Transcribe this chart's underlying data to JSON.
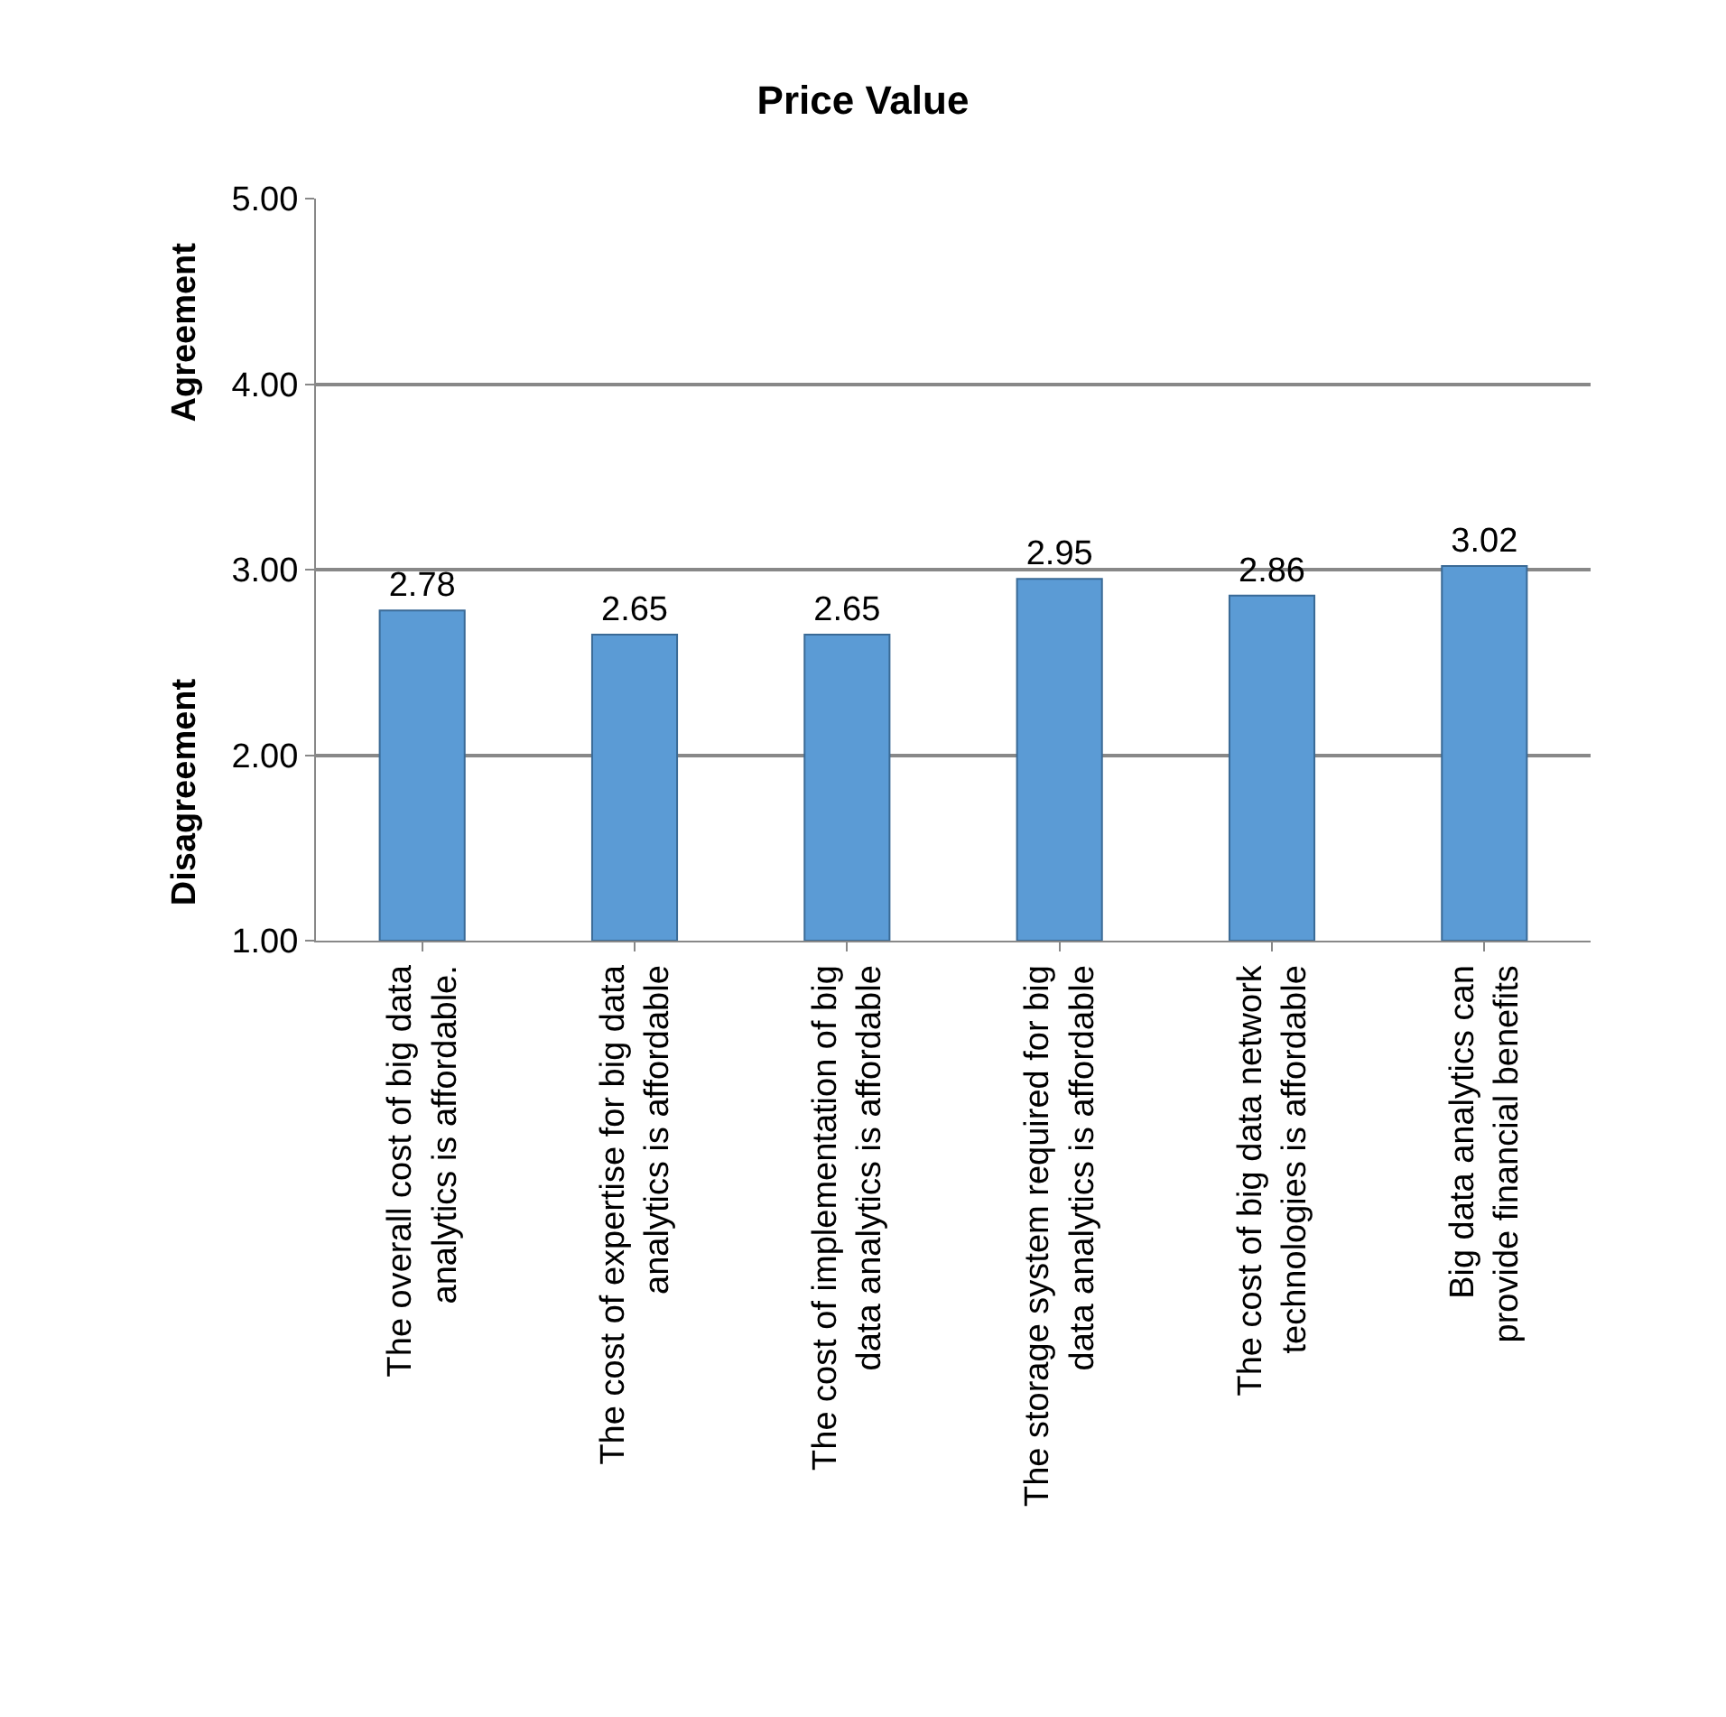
{
  "chart_data": {
    "type": "bar",
    "title": "Price Value",
    "ylabel": "Disagreement",
    "annotations": [
      "Agreement"
    ],
    "categories": [
      "The overall cost of big data analytics is affordable.",
      "The cost of expertise for big data analytics is affordable",
      "The cost of implementation of big data analytics is affordable",
      "The storage system required for big data analytics is affordable",
      "The cost of big data network technologies is affordable",
      "Big data analytics can provide financial benefits"
    ],
    "values": [
      2.78,
      2.65,
      2.65,
      2.95,
      2.86,
      3.02
    ],
    "color": "#5b9bd5",
    "data_labels": true,
    "ylim": [
      1,
      5
    ],
    "yticks": [
      {
        "value": 1,
        "label": "1.00"
      },
      {
        "value": 2,
        "label": "2.00"
      },
      {
        "value": 3,
        "label": "3.00"
      },
      {
        "value": 4,
        "label": "4.00"
      },
      {
        "value": 5,
        "label": "5.00"
      }
    ],
    "grid": "y",
    "legend": false
  }
}
